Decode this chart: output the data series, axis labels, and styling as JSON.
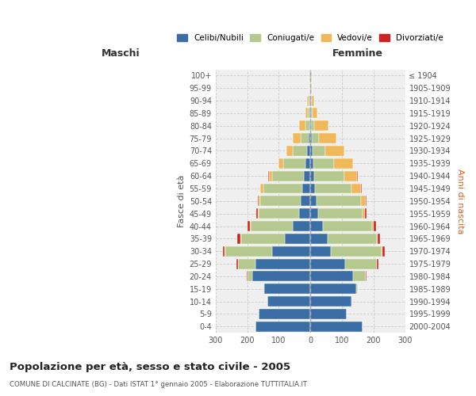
{
  "age_groups": [
    "0-4",
    "5-9",
    "10-14",
    "15-19",
    "20-24",
    "25-29",
    "30-34",
    "35-39",
    "40-44",
    "45-49",
    "50-54",
    "55-59",
    "60-64",
    "65-69",
    "70-74",
    "75-79",
    "80-84",
    "85-89",
    "90-94",
    "95-99",
    "100+"
  ],
  "birth_years": [
    "2000-2004",
    "1995-1999",
    "1990-1994",
    "1985-1989",
    "1980-1984",
    "1975-1979",
    "1970-1974",
    "1965-1969",
    "1960-1964",
    "1955-1959",
    "1950-1954",
    "1945-1949",
    "1940-1944",
    "1935-1939",
    "1930-1934",
    "1925-1929",
    "1920-1924",
    "1915-1919",
    "1910-1914",
    "1905-1909",
    "≤ 1904"
  ],
  "colors": {
    "celibi": "#3a6ea5",
    "coniugati": "#b5c98e",
    "vedovi": "#f0b85a",
    "divorziati": "#cc2222"
  },
  "male": {
    "celibi": [
      175,
      165,
      135,
      145,
      185,
      175,
      120,
      80,
      55,
      35,
      30,
      25,
      20,
      15,
      10,
      6,
      4,
      3,
      2,
      1,
      2
    ],
    "coniugati": [
      0,
      0,
      2,
      5,
      15,
      55,
      150,
      140,
      135,
      130,
      130,
      125,
      100,
      70,
      45,
      25,
      12,
      5,
      3,
      1,
      1
    ],
    "vedovi": [
      0,
      0,
      0,
      0,
      0,
      0,
      1,
      1,
      1,
      2,
      5,
      8,
      12,
      15,
      20,
      25,
      20,
      8,
      5,
      1,
      0
    ],
    "divorziati": [
      0,
      0,
      0,
      0,
      1,
      3,
      5,
      10,
      8,
      5,
      2,
      2,
      2,
      0,
      0,
      0,
      0,
      0,
      0,
      0,
      0
    ]
  },
  "female": {
    "nubili": [
      165,
      115,
      130,
      145,
      135,
      110,
      65,
      55,
      40,
      25,
      20,
      15,
      12,
      10,
      7,
      5,
      3,
      3,
      2,
      1,
      1
    ],
    "coniugate": [
      0,
      0,
      2,
      5,
      40,
      100,
      160,
      155,
      155,
      140,
      140,
      115,
      95,
      65,
      40,
      22,
      10,
      5,
      2,
      1,
      1
    ],
    "vedove": [
      0,
      0,
      0,
      0,
      0,
      1,
      2,
      3,
      5,
      8,
      15,
      30,
      40,
      60,
      60,
      55,
      45,
      15,
      8,
      2,
      2
    ],
    "divorziate": [
      0,
      0,
      0,
      0,
      2,
      5,
      8,
      8,
      8,
      5,
      3,
      3,
      3,
      0,
      0,
      0,
      0,
      0,
      0,
      0,
      0
    ]
  },
  "title": "Popolazione per età, sesso e stato civile - 2005",
  "subtitle": "COMUNE DI CALCINATE (BG) - Dati ISTAT 1° gennaio 2005 - Elaborazione TUTTITALIA.IT",
  "xlabel_left": "Maschi",
  "xlabel_right": "Femmine",
  "ylabel_left": "Fasce di età",
  "ylabel_right": "Anni di nascita",
  "xlim": 300,
  "legend_labels": [
    "Celibi/Nubili",
    "Coniugati/e",
    "Vedovi/e",
    "Divorziati/e"
  ],
  "background_color": "#ffffff",
  "plot_bg_color": "#efefef"
}
